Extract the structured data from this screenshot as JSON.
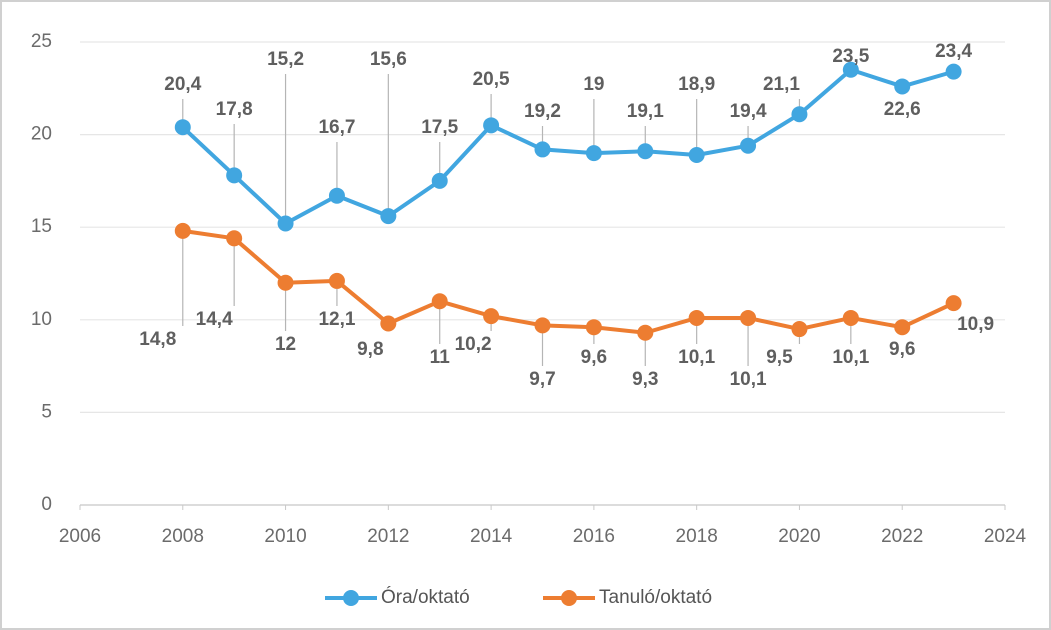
{
  "chart_data": {
    "type": "line",
    "x": [
      2008,
      2009,
      2010,
      2011,
      2012,
      2013,
      2014,
      2015,
      2016,
      2017,
      2018,
      2019,
      2020,
      2021,
      2022,
      2023
    ],
    "series": [
      {
        "name": "Óra/oktató",
        "color": "#41a6e0",
        "values": [
          20.4,
          17.8,
          15.2,
          16.7,
          15.6,
          17.5,
          20.5,
          19.2,
          19,
          19.1,
          18.9,
          19.4,
          21.1,
          23.5,
          22.6,
          23.4
        ],
        "value_labels": [
          "20,4",
          "17,8",
          "15,2",
          "16,7",
          "15,6",
          "17,5",
          "20,5",
          "19,2",
          "19",
          "19,1",
          "18,9",
          "19,4",
          "21,1",
          "23,5",
          "22,6",
          "23,4"
        ]
      },
      {
        "name": "Tanuló/oktató",
        "color": "#ed7d31",
        "values": [
          14.8,
          14.4,
          12,
          12.1,
          9.8,
          11,
          10.2,
          9.7,
          9.6,
          9.3,
          10.1,
          10.1,
          9.5,
          10.1,
          9.6,
          10.9
        ],
        "value_labels": [
          "14,8",
          "14,4",
          "12",
          "12,1",
          "9,8",
          "11",
          "10,2",
          "9,7",
          "9,6",
          "9,3",
          "10,1",
          "10,1",
          "9,5",
          "10,1",
          "9,6",
          "10,9"
        ]
      }
    ],
    "xlim": [
      2006,
      2024
    ],
    "xticks": [
      2006,
      2008,
      2010,
      2012,
      2014,
      2016,
      2018,
      2020,
      2022,
      2024
    ],
    "ylim": [
      0,
      25
    ],
    "yticks": [
      0,
      5,
      10,
      15,
      20,
      25
    ],
    "grid": true,
    "legend": "bottom"
  }
}
